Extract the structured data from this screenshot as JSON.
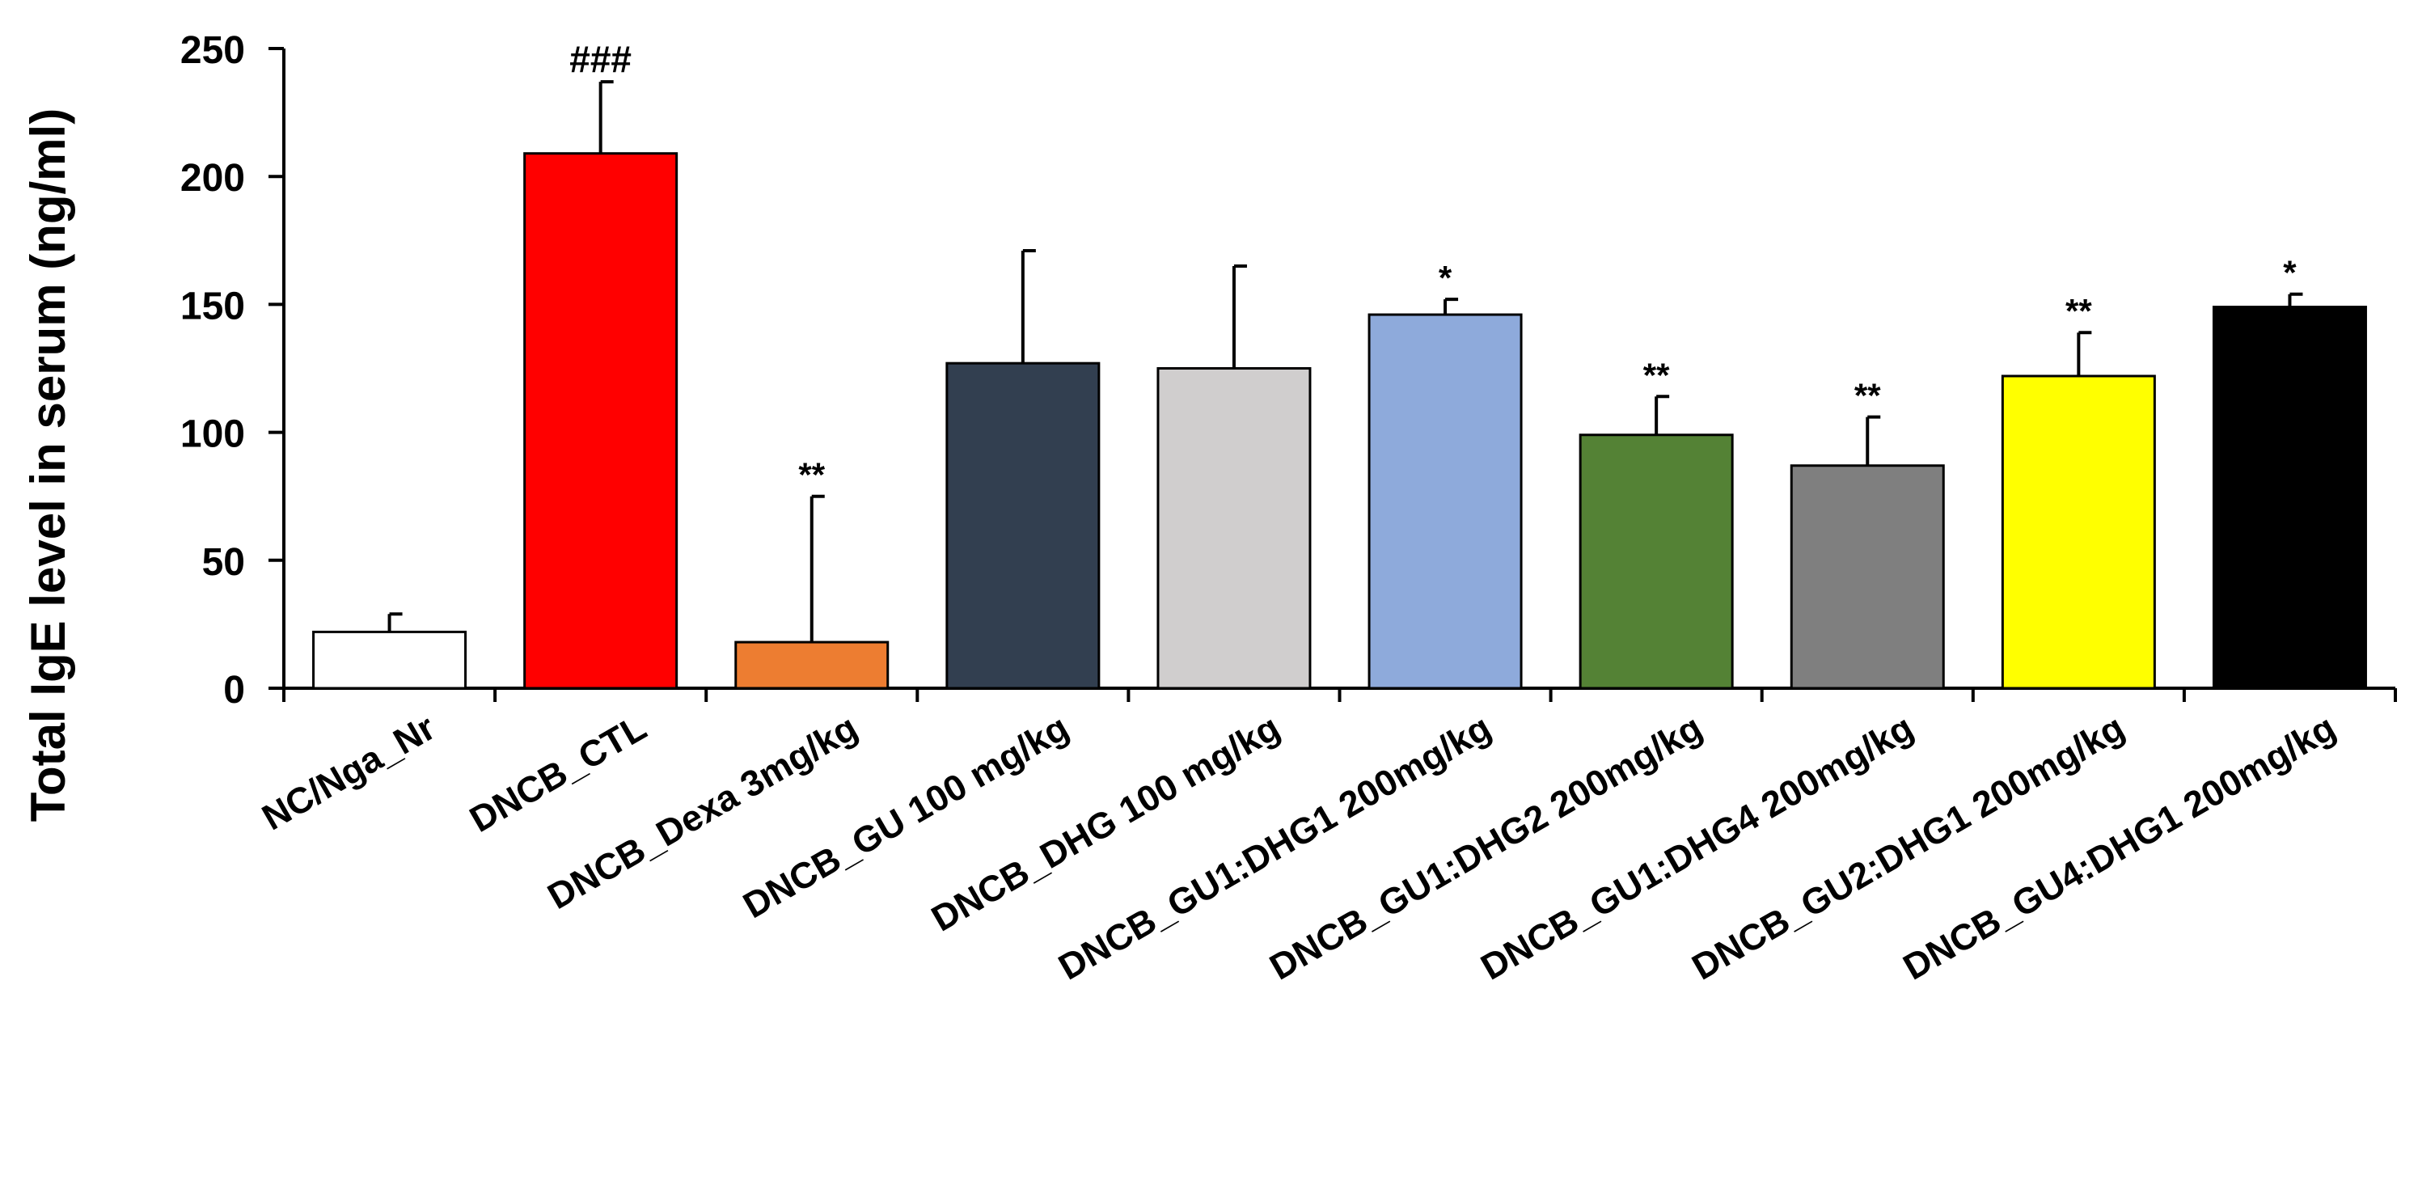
{
  "chart_data": {
    "type": "bar",
    "title": "",
    "xlabel": "",
    "ylabel": "Total  IgE level in serum (ng/ml)",
    "ylim": [
      0,
      250
    ],
    "yticks": [
      0,
      50,
      100,
      150,
      200,
      250
    ],
    "grid": false,
    "legend": "none",
    "categories": [
      "NC/Nga_Nr",
      "DNCB_CTL",
      "DNCB_Dexa 3mg/kg",
      "DNCB_GU 100 mg/kg",
      "DNCB_DHG 100 mg/kg",
      "DNCB_GU1:DHG1 200mg/kg",
      "DNCB_GU1:DHG2 200mg/kg",
      "DNCB_GU1:DHG4 200mg/kg",
      "DNCB_GU2:DHG1 200mg/kg",
      "DNCB_GU4:DHG1 200mg/kg"
    ],
    "values": [
      22,
      209,
      18,
      127,
      125,
      146,
      99,
      87,
      122,
      149
    ],
    "errors": [
      7,
      28,
      57,
      44,
      40,
      6,
      15,
      19,
      17,
      5
    ],
    "significance": [
      "",
      "###",
      "**",
      "",
      "",
      "*",
      "**",
      "**",
      "**",
      "*"
    ],
    "colors": [
      "#FFFFFF",
      "#FF0000",
      "#ED7D31",
      "#323F50",
      "#D0CECE",
      "#8EAADB",
      "#548235",
      "#7F7F7F",
      "#FFFF00",
      "#000000"
    ]
  }
}
